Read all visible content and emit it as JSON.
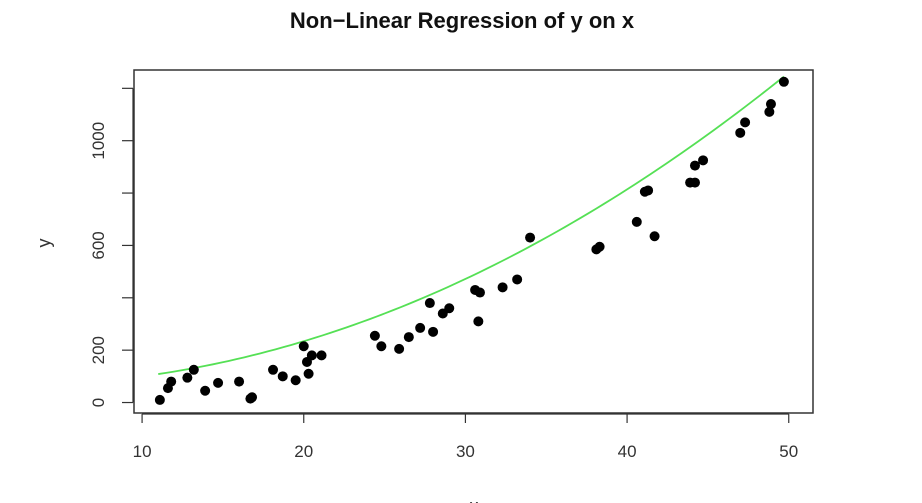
{
  "chart_data": {
    "type": "scatter",
    "title": "Non−Linear Regression of y on x",
    "xlabel": "x",
    "ylabel": "y",
    "xlim": [
      9.5,
      51.5
    ],
    "ylim": [
      -40,
      1270
    ],
    "xticks": [
      10,
      20,
      30,
      40,
      50
    ],
    "yticks": [
      0,
      200,
      600,
      1000
    ],
    "yticks_unlabeled": [
      400,
      800,
      1200
    ],
    "grid": false,
    "colors": {
      "points": "#000000",
      "fit_line": "#55e055",
      "frame": "#333333"
    },
    "series": [
      {
        "values": [
          [
            11.1,
            10
          ],
          [
            11.6,
            55
          ],
          [
            11.8,
            80
          ],
          [
            12.8,
            95
          ],
          [
            13.2,
            125
          ],
          [
            13.9,
            45
          ],
          [
            14.7,
            75
          ],
          [
            16.0,
            80
          ],
          [
            16.7,
            15
          ],
          [
            16.8,
            20
          ],
          [
            18.1,
            125
          ],
          [
            18.7,
            100
          ],
          [
            19.5,
            85
          ],
          [
            20.0,
            215
          ],
          [
            20.2,
            155
          ],
          [
            20.3,
            110
          ],
          [
            20.5,
            180
          ],
          [
            21.1,
            180
          ],
          [
            24.4,
            255
          ],
          [
            24.8,
            215
          ],
          [
            25.9,
            205
          ],
          [
            26.5,
            250
          ],
          [
            27.2,
            285
          ],
          [
            27.8,
            380
          ],
          [
            28.0,
            270
          ],
          [
            28.6,
            340
          ],
          [
            29.0,
            360
          ],
          [
            30.6,
            430
          ],
          [
            30.9,
            420
          ],
          [
            30.8,
            310
          ],
          [
            32.3,
            440
          ],
          [
            33.2,
            470
          ],
          [
            34.0,
            630
          ],
          [
            38.1,
            585
          ],
          [
            38.3,
            595
          ],
          [
            40.6,
            690
          ],
          [
            41.1,
            805
          ],
          [
            41.3,
            810
          ],
          [
            41.7,
            635
          ],
          [
            43.9,
            840
          ],
          [
            44.2,
            840
          ],
          [
            44.2,
            905
          ],
          [
            44.7,
            925
          ],
          [
            47.0,
            1030
          ],
          [
            47.3,
            1070
          ],
          [
            48.8,
            1110
          ],
          [
            48.9,
            1140
          ],
          [
            49.7,
            1225
          ]
        ]
      }
    ],
    "fit": {
      "x_range": [
        11,
        49.7
      ],
      "coefficients": [
        70,
        -2.2,
        0.52
      ]
    }
  }
}
